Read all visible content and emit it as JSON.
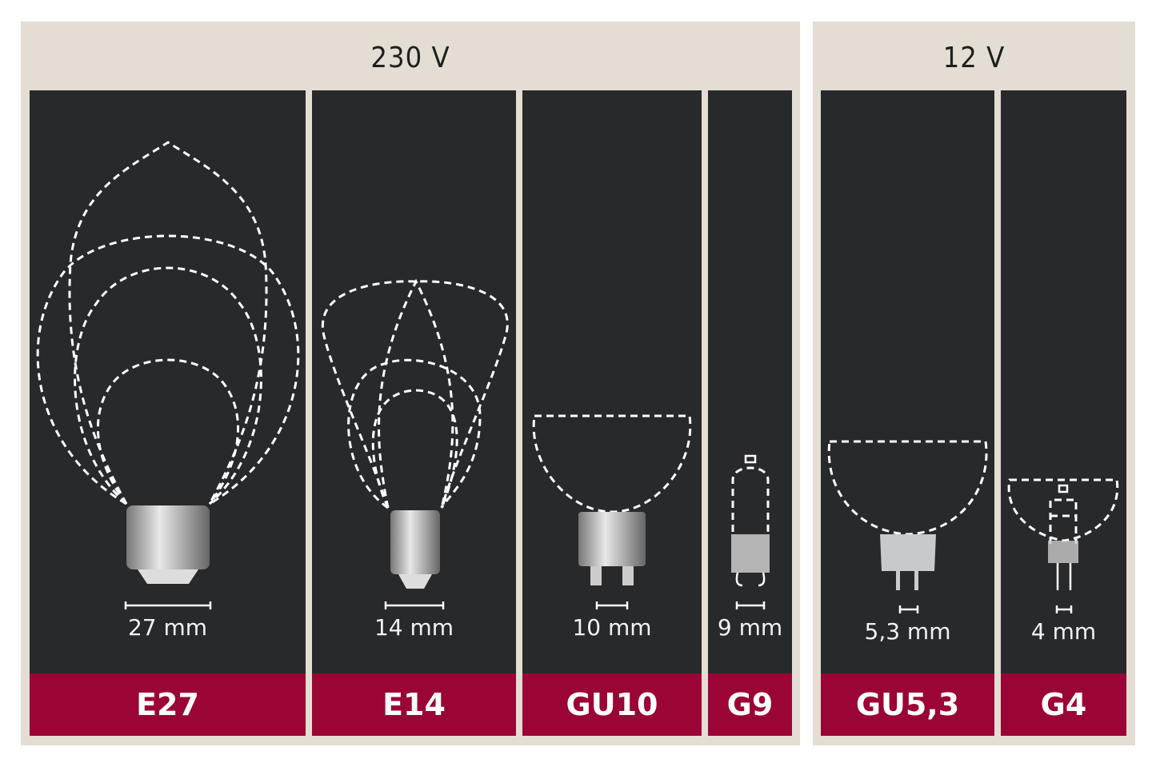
{
  "groups": [
    {
      "voltage": "230 V",
      "sockets": [
        {
          "name": "E27",
          "pin_spacing": "27 mm"
        },
        {
          "name": "E14",
          "pin_spacing": "14 mm"
        },
        {
          "name": "GU10",
          "pin_spacing": "10 mm"
        },
        {
          "name": "G9",
          "pin_spacing": "9 mm"
        }
      ]
    },
    {
      "voltage": "12 V",
      "sockets": [
        {
          "name": "GU5,3",
          "pin_spacing": "5,3 mm"
        },
        {
          "name": "G4",
          "pin_spacing": "4 mm"
        }
      ]
    }
  ],
  "colors": {
    "panel": "#e4ddd3",
    "column": "#28292b",
    "label_band": "#9b0535"
  }
}
